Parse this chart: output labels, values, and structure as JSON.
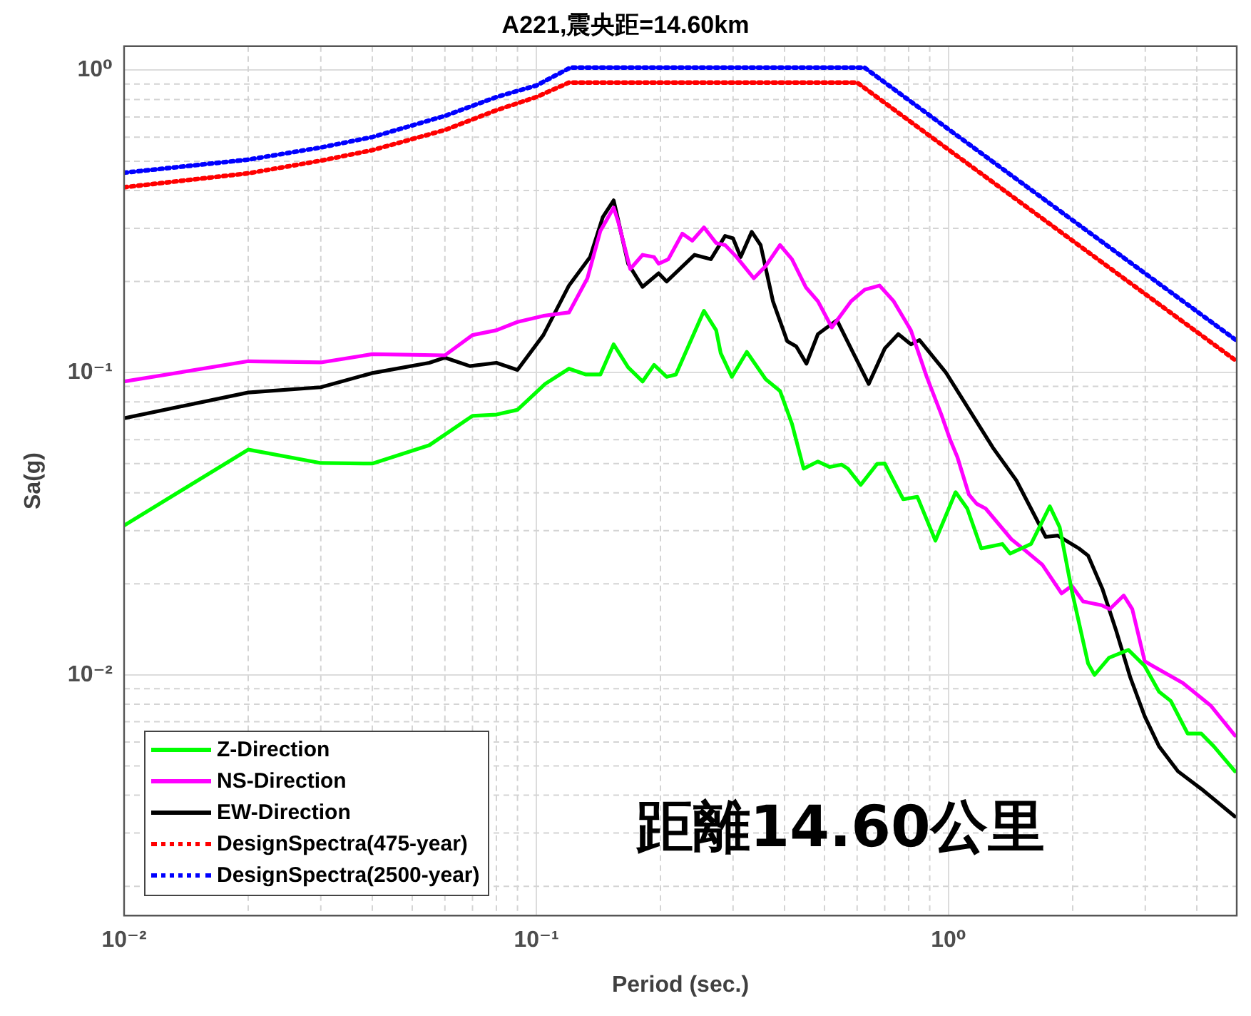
{
  "chart_data": {
    "type": "line",
    "title": "A221,震央距=14.60km",
    "xlabel": "Period (sec.)",
    "ylabel": "Sa(g)",
    "log": "xy",
    "grid": true,
    "legend": "bottom left",
    "xlim": [
      0.01,
      5
    ],
    "ylim": [
      0.0016,
      1.2
    ],
    "xticks": [
      {
        "value": 0.01,
        "label": "10⁻²"
      },
      {
        "value": 0.1,
        "label": "10⁻¹"
      },
      {
        "value": 1,
        "label": "10⁰"
      }
    ],
    "yticks": [
      {
        "value": 0.01,
        "label": "10⁻²"
      },
      {
        "value": 0.1,
        "label": "10⁻¹"
      },
      {
        "value": 1,
        "label": "10⁰"
      }
    ],
    "annotations": [
      "距離14.60公里"
    ],
    "series": [
      {
        "name": "Z-Direction",
        "color": "#00ff00",
        "line_style": "solid",
        "x": [
          0.01,
          0.02,
          0.03,
          0.04,
          0.055,
          0.07,
          0.08,
          0.09,
          0.105,
          0.12,
          0.132,
          0.143,
          0.154,
          0.167,
          0.181,
          0.193,
          0.207,
          0.218,
          0.255,
          0.273,
          0.28,
          0.298,
          0.324,
          0.36,
          0.39,
          0.417,
          0.445,
          0.482,
          0.515,
          0.55,
          0.57,
          0.612,
          0.671,
          0.7,
          0.776,
          0.84,
          0.929,
          1.04,
          1.11,
          1.2,
          1.35,
          1.41,
          1.585,
          1.76,
          1.86,
          1.99,
          2.18,
          2.26,
          2.45,
          2.73,
          2.99,
          3.24,
          3.46,
          3.8,
          4.1,
          4.4,
          4.95
        ],
        "values": [
          0.0312,
          0.0556,
          0.0502,
          0.05,
          0.0575,
          0.0719,
          0.0726,
          0.0753,
          0.0917,
          0.103,
          0.0985,
          0.0985,
          0.124,
          0.104,
          0.0934,
          0.106,
          0.0968,
          0.0985,
          0.16,
          0.138,
          0.116,
          0.0968,
          0.117,
          0.095,
          0.0869,
          0.0676,
          0.0481,
          0.0508,
          0.0487,
          0.0496,
          0.0481,
          0.0425,
          0.0499,
          0.05,
          0.0381,
          0.0388,
          0.0278,
          0.0402,
          0.0355,
          0.0262,
          0.0271,
          0.0252,
          0.0271,
          0.0361,
          0.0308,
          0.019,
          0.0109,
          0.01,
          0.0114,
          0.0121,
          0.0107,
          0.0088,
          0.0082,
          0.0064,
          0.0064,
          0.0058,
          0.0048
        ]
      },
      {
        "name": "NS-Direction",
        "color": "#ff00ff",
        "line_style": "solid",
        "x": [
          0.01,
          0.02,
          0.03,
          0.04,
          0.06,
          0.07,
          0.08,
          0.09,
          0.104,
          0.12,
          0.133,
          0.143,
          0.154,
          0.158,
          0.169,
          0.181,
          0.193,
          0.198,
          0.209,
          0.226,
          0.239,
          0.255,
          0.273,
          0.287,
          0.306,
          0.337,
          0.36,
          0.39,
          0.417,
          0.451,
          0.482,
          0.521,
          0.58,
          0.626,
          0.68,
          0.736,
          0.81,
          0.885,
          0.96,
          1.01,
          1.05,
          1.12,
          1.17,
          1.23,
          1.42,
          1.54,
          1.69,
          1.88,
          1.99,
          2.12,
          2.35,
          2.46,
          2.66,
          2.79,
          2.99,
          3.13,
          3.7,
          4.33,
          4.95
        ],
        "values": [
          0.0934,
          0.109,
          0.108,
          0.115,
          0.114,
          0.133,
          0.138,
          0.147,
          0.154,
          0.158,
          0.205,
          0.294,
          0.351,
          0.315,
          0.22,
          0.245,
          0.241,
          0.229,
          0.237,
          0.288,
          0.273,
          0.302,
          0.268,
          0.264,
          0.241,
          0.205,
          0.225,
          0.264,
          0.237,
          0.191,
          0.172,
          0.141,
          0.172,
          0.188,
          0.194,
          0.172,
          0.138,
          0.0968,
          0.0727,
          0.0597,
          0.0526,
          0.0395,
          0.0368,
          0.0355,
          0.0281,
          0.0257,
          0.0231,
          0.0186,
          0.0197,
          0.0175,
          0.017,
          0.0165,
          0.0183,
          0.0165,
          0.0111,
          0.0107,
          0.0094,
          0.0079,
          0.0063
        ]
      },
      {
        "name": "EW-Direction",
        "color": "#000000",
        "line_style": "solid",
        "x": [
          0.01,
          0.02,
          0.03,
          0.04,
          0.055,
          0.06,
          0.069,
          0.08,
          0.09,
          0.104,
          0.12,
          0.135,
          0.145,
          0.154,
          0.167,
          0.181,
          0.198,
          0.207,
          0.242,
          0.265,
          0.287,
          0.3,
          0.313,
          0.333,
          0.35,
          0.375,
          0.406,
          0.427,
          0.452,
          0.482,
          0.536,
          0.58,
          0.64,
          0.7,
          0.755,
          0.81,
          0.85,
          0.985,
          1.28,
          1.46,
          1.72,
          1.84,
          2.07,
          2.18,
          2.36,
          2.55,
          2.76,
          2.99,
          3.24,
          3.6,
          4.1,
          4.95
        ],
        "values": [
          0.0706,
          0.0859,
          0.0894,
          0.0996,
          0.1077,
          0.112,
          0.105,
          0.1077,
          0.102,
          0.133,
          0.194,
          0.241,
          0.327,
          0.371,
          0.229,
          0.192,
          0.213,
          0.2,
          0.245,
          0.237,
          0.283,
          0.278,
          0.241,
          0.292,
          0.264,
          0.172,
          0.127,
          0.122,
          0.107,
          0.134,
          0.149,
          0.12,
          0.0917,
          0.12,
          0.134,
          0.124,
          0.128,
          0.1,
          0.0565,
          0.044,
          0.0286,
          0.0289,
          0.0262,
          0.0248,
          0.0193,
          0.014,
          0.0098,
          0.0073,
          0.0058,
          0.0048,
          0.0042,
          0.0034
        ]
      },
      {
        "name": "DesignSpectra(475-year)",
        "color": "#ff0000",
        "line_style": "dotted",
        "x": [
          0.01,
          0.02,
          0.03,
          0.04,
          0.06,
          0.08,
          0.1,
          0.12,
          0.6,
          5
        ],
        "values": [
          0.41,
          0.456,
          0.502,
          0.544,
          0.634,
          0.737,
          0.815,
          0.91,
          0.91,
          0.109
        ]
      },
      {
        "name": "DesignSpectra(2500-year)",
        "color": "#0000ff",
        "line_style": "dotted",
        "x": [
          0.01,
          0.02,
          0.03,
          0.04,
          0.06,
          0.08,
          0.1,
          0.121,
          0.625,
          5
        ],
        "values": [
          0.458,
          0.506,
          0.555,
          0.601,
          0.706,
          0.815,
          0.89,
          1.02,
          1.02,
          0.1275
        ]
      }
    ]
  }
}
